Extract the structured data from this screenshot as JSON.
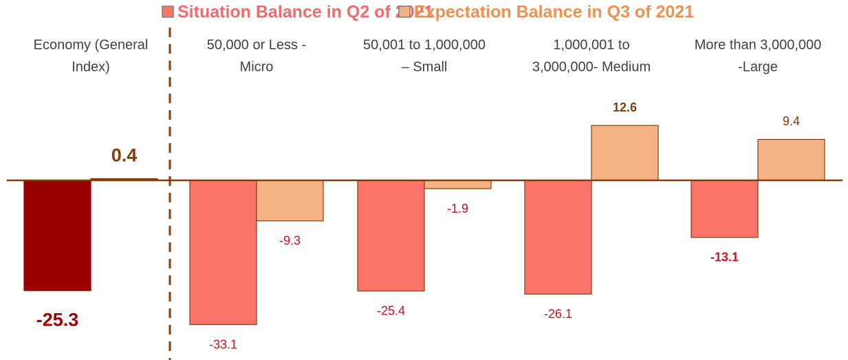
{
  "chart_data": {
    "type": "bar",
    "categories": [
      [
        "Economy (General",
        "Index)"
      ],
      [
        "50,000 or Less -",
        "Micro"
      ],
      [
        "50,001 to 1,000,000",
        "– Small"
      ],
      [
        "1,000,001 to",
        "3,000,000- Medium"
      ],
      [
        "More than 3,000,000",
        "-Large"
      ]
    ],
    "series": [
      {
        "name": "Situation Balance in Q2 of 2021",
        "color": "#fb7369",
        "point_colors": [
          "#990000",
          "#fb7369",
          "#fb7369",
          "#fb7369",
          "#fb7369"
        ],
        "values": [
          -25.3,
          -33.1,
          -25.4,
          -26.1,
          -13.1
        ],
        "label_bold": [
          true,
          false,
          false,
          false,
          true
        ]
      },
      {
        "name": "Expectation Balance in Q3 of 2021",
        "color": "#f4b183",
        "point_colors": [
          "#843c0c",
          "#f4b183",
          "#f4b183",
          "#f4b183",
          "#f4b183"
        ],
        "values": [
          0.4,
          -9.3,
          -1.9,
          12.6,
          9.4
        ],
        "label_bold": [
          true,
          false,
          false,
          true,
          false
        ]
      }
    ]
  }
}
